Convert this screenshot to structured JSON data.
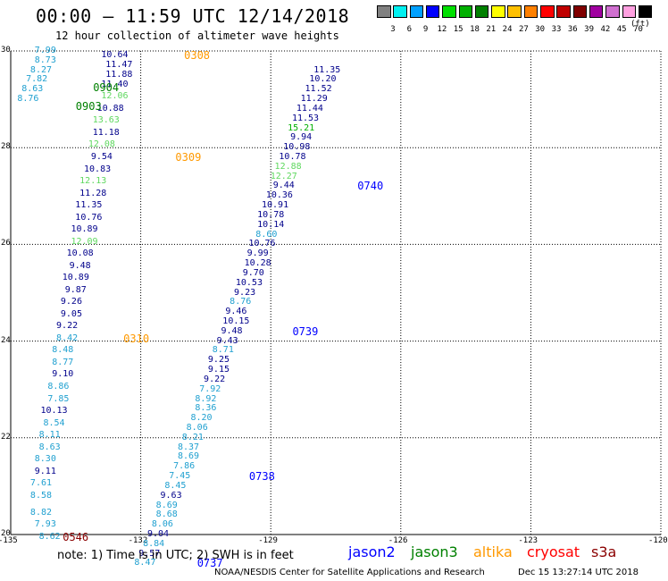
{
  "title": "00:00 – 11:59 UTC 12/14/2018",
  "subtitle": "12 hour collection of altimeter wave heights",
  "colorbar": {
    "colors": [
      "#808080",
      "#00f0f0",
      "#00a0ff",
      "#0000ff",
      "#00e000",
      "#00b000",
      "#008000",
      "#ffff00",
      "#ffc000",
      "#ff8000",
      "#ff0000",
      "#c00000",
      "#800000",
      "#a000a0",
      "#d070d0",
      "#ffa0e0",
      "#000000"
    ],
    "labels": [
      "3",
      "6",
      "9",
      "12",
      "15",
      "18",
      "21",
      "24",
      "27",
      "30",
      "33",
      "36",
      "39",
      "42",
      "45",
      "70"
    ],
    "unit": "(ft)"
  },
  "axes": {
    "x_ticks": [
      "-135",
      "-132",
      "-129",
      "-126",
      "-123",
      "-120"
    ],
    "y_ticks": [
      "30",
      "28",
      "26",
      "24",
      "22",
      "20"
    ],
    "xlim": [
      -135,
      -120
    ],
    "ylim": [
      20,
      30
    ]
  },
  "tracks": [
    {
      "lat": 29.9,
      "lon": -132.6,
      "value": "10.64",
      "color": "#00008b"
    },
    {
      "lat": 29.7,
      "lon": -132.5,
      "value": "11.47",
      "color": "#00008b"
    },
    {
      "lat": 29.5,
      "lon": -132.5,
      "value": "11.88",
      "color": "#00008b"
    },
    {
      "lat": 29.3,
      "lon": -132.6,
      "value": "11.40",
      "color": "#00008b"
    },
    {
      "lat": 29.05,
      "lon": -132.6,
      "value": "12.06",
      "color": "#5fd85f"
    },
    {
      "lat": 28.8,
      "lon": -132.7,
      "value": "10.88",
      "color": "#00008b"
    },
    {
      "lat": 28.55,
      "lon": -132.8,
      "value": "13.63",
      "color": "#5fd85f"
    },
    {
      "lat": 28.3,
      "lon": -132.8,
      "value": "11.18",
      "color": "#00008b"
    },
    {
      "lat": 28.05,
      "lon": -132.9,
      "value": "12.08",
      "color": "#5fd85f"
    },
    {
      "lat": 27.8,
      "lon": -132.9,
      "value": "9.54",
      "color": "#00008b"
    },
    {
      "lat": 27.55,
      "lon": -133.0,
      "value": "10.83",
      "color": "#00008b"
    },
    {
      "lat": 27.3,
      "lon": -133.1,
      "value": "12.13",
      "color": "#5fd85f"
    },
    {
      "lat": 27.05,
      "lon": -133.1,
      "value": "11.28",
      "color": "#00008b"
    },
    {
      "lat": 26.8,
      "lon": -133.2,
      "value": "11.35",
      "color": "#00008b"
    },
    {
      "lat": 26.55,
      "lon": -133.2,
      "value": "10.76",
      "color": "#00008b"
    },
    {
      "lat": 26.3,
      "lon": -133.3,
      "value": "10.89",
      "color": "#00008b"
    },
    {
      "lat": 26.05,
      "lon": -133.3,
      "value": "12.09",
      "color": "#5fd85f"
    },
    {
      "lat": 25.8,
      "lon": -133.4,
      "value": "10.08",
      "color": "#00008b"
    },
    {
      "lat": 25.55,
      "lon": -133.4,
      "value": "9.48",
      "color": "#00008b"
    },
    {
      "lat": 25.3,
      "lon": -133.5,
      "value": "10.89",
      "color": "#00008b"
    },
    {
      "lat": 25.05,
      "lon": -133.5,
      "value": "9.87",
      "color": "#00008b"
    },
    {
      "lat": 24.8,
      "lon": -133.6,
      "value": "9.26",
      "color": "#00008b"
    },
    {
      "lat": 24.55,
      "lon": -133.6,
      "value": "9.05",
      "color": "#00008b"
    },
    {
      "lat": 24.3,
      "lon": -133.7,
      "value": "9.22",
      "color": "#00008b"
    },
    {
      "lat": 24.05,
      "lon": -133.7,
      "value": "8.42",
      "color": "#20a0d0"
    },
    {
      "lat": 23.8,
      "lon": -133.8,
      "value": "8.48",
      "color": "#20a0d0"
    },
    {
      "lat": 23.55,
      "lon": -133.8,
      "value": "8.77",
      "color": "#20a0d0"
    },
    {
      "lat": 23.3,
      "lon": -133.8,
      "value": "9.10",
      "color": "#00008b"
    },
    {
      "lat": 23.05,
      "lon": -133.9,
      "value": "8.86",
      "color": "#20a0d0"
    },
    {
      "lat": 22.8,
      "lon": -133.9,
      "value": "7.85",
      "color": "#20a0d0"
    },
    {
      "lat": 22.55,
      "lon": -134.0,
      "value": "10.13",
      "color": "#00008b"
    },
    {
      "lat": 22.3,
      "lon": -134.0,
      "value": "8.54",
      "color": "#20a0d0"
    },
    {
      "lat": 22.05,
      "lon": -134.1,
      "value": "8.11",
      "color": "#20a0d0"
    },
    {
      "lat": 21.8,
      "lon": -134.1,
      "value": "8.63",
      "color": "#20a0d0"
    },
    {
      "lat": 21.55,
      "lon": -134.2,
      "value": "8.30",
      "color": "#20a0d0"
    },
    {
      "lat": 21.3,
      "lon": -134.2,
      "value": "9.11",
      "color": "#00008b"
    },
    {
      "lat": 21.05,
      "lon": -134.3,
      "value": "7.61",
      "color": "#20a0d0"
    },
    {
      "lat": 20.8,
      "lon": -134.3,
      "value": "8.58",
      "color": "#20a0d0"
    },
    {
      "lat": 20.45,
      "lon": -134.3,
      "value": "8.82",
      "color": "#20a0d0"
    },
    {
      "lat": 20.2,
      "lon": -134.2,
      "value": "7.93",
      "color": "#20a0d0"
    },
    {
      "lat": 19.95,
      "lon": -134.1,
      "value": "8.62",
      "color": "#20a0d0"
    },
    {
      "lat": 30.0,
      "lon": -134.2,
      "value": "7.99",
      "color": "#20a0d0"
    },
    {
      "lat": 29.8,
      "lon": -134.2,
      "value": "8.73",
      "color": "#20a0d0"
    },
    {
      "lat": 29.6,
      "lon": -134.3,
      "value": "8.27",
      "color": "#20a0d0"
    },
    {
      "lat": 29.4,
      "lon": -134.4,
      "value": "7.82",
      "color": "#20a0d0"
    },
    {
      "lat": 29.2,
      "lon": -134.5,
      "value": "8.63",
      "color": "#20a0d0"
    },
    {
      "lat": 29.0,
      "lon": -134.6,
      "value": "8.76",
      "color": "#20a0d0"
    },
    {
      "lat": 29.6,
      "lon": -127.7,
      "value": "11.35",
      "color": "#00008b"
    },
    {
      "lat": 29.4,
      "lon": -127.8,
      "value": "10.20",
      "color": "#00008b"
    },
    {
      "lat": 29.2,
      "lon": -127.9,
      "value": "11.52",
      "color": "#00008b"
    },
    {
      "lat": 29.0,
      "lon": -128.0,
      "value": "11.29",
      "color": "#00008b"
    },
    {
      "lat": 28.8,
      "lon": -128.1,
      "value": "11.44",
      "color": "#00008b"
    },
    {
      "lat": 28.6,
      "lon": -128.2,
      "value": "11.53",
      "color": "#00008b"
    },
    {
      "lat": 28.4,
      "lon": -128.3,
      "value": "15.21",
      "color": "#00b000"
    },
    {
      "lat": 28.2,
      "lon": -128.3,
      "value": "9.94",
      "color": "#00008b"
    },
    {
      "lat": 28.0,
      "lon": -128.4,
      "value": "10.98",
      "color": "#00008b"
    },
    {
      "lat": 27.8,
      "lon": -128.5,
      "value": "10.78",
      "color": "#00008b"
    },
    {
      "lat": 27.6,
      "lon": -128.6,
      "value": "12.88",
      "color": "#5fd85f"
    },
    {
      "lat": 27.4,
      "lon": -128.7,
      "value": "12.27",
      "color": "#5fd85f"
    },
    {
      "lat": 27.2,
      "lon": -128.7,
      "value": "9.44",
      "color": "#00008b"
    },
    {
      "lat": 27.0,
      "lon": -128.8,
      "value": "10.36",
      "color": "#00008b"
    },
    {
      "lat": 26.8,
      "lon": -128.9,
      "value": "10.91",
      "color": "#00008b"
    },
    {
      "lat": 26.6,
      "lon": -129.0,
      "value": "10.78",
      "color": "#00008b"
    },
    {
      "lat": 26.4,
      "lon": -129.0,
      "value": "10.14",
      "color": "#00008b"
    },
    {
      "lat": 26.2,
      "lon": -129.1,
      "value": "8.60",
      "color": "#20a0d0"
    },
    {
      "lat": 26.0,
      "lon": -129.2,
      "value": "10.76",
      "color": "#00008b"
    },
    {
      "lat": 25.8,
      "lon": -129.3,
      "value": "9.99",
      "color": "#00008b"
    },
    {
      "lat": 25.6,
      "lon": -129.3,
      "value": "10.28",
      "color": "#00008b"
    },
    {
      "lat": 25.4,
      "lon": -129.4,
      "value": "9.70",
      "color": "#00008b"
    },
    {
      "lat": 25.2,
      "lon": -129.5,
      "value": "10.53",
      "color": "#00008b"
    },
    {
      "lat": 25.0,
      "lon": -129.6,
      "value": "9.23",
      "color": "#00008b"
    },
    {
      "lat": 24.8,
      "lon": -129.7,
      "value": "8.76",
      "color": "#20a0d0"
    },
    {
      "lat": 24.6,
      "lon": -129.8,
      "value": "9.46",
      "color": "#00008b"
    },
    {
      "lat": 24.4,
      "lon": -129.8,
      "value": "10.15",
      "color": "#00008b"
    },
    {
      "lat": 24.2,
      "lon": -129.9,
      "value": "9.48",
      "color": "#00008b"
    },
    {
      "lat": 24.0,
      "lon": -130.0,
      "value": "9.43",
      "color": "#00008b"
    },
    {
      "lat": 23.8,
      "lon": -130.1,
      "value": "8.71",
      "color": "#20a0d0"
    },
    {
      "lat": 23.6,
      "lon": -130.2,
      "value": "9.25",
      "color": "#00008b"
    },
    {
      "lat": 23.4,
      "lon": -130.2,
      "value": "9.15",
      "color": "#00008b"
    },
    {
      "lat": 23.2,
      "lon": -130.3,
      "value": "9.22",
      "color": "#00008b"
    },
    {
      "lat": 23.0,
      "lon": -130.4,
      "value": "7.92",
      "color": "#20a0d0"
    },
    {
      "lat": 22.8,
      "lon": -130.5,
      "value": "8.92",
      "color": "#20a0d0"
    },
    {
      "lat": 22.6,
      "lon": -130.5,
      "value": "8.36",
      "color": "#20a0d0"
    },
    {
      "lat": 22.4,
      "lon": -130.6,
      "value": "8.20",
      "color": "#20a0d0"
    },
    {
      "lat": 22.2,
      "lon": -130.7,
      "value": "8.06",
      "color": "#20a0d0"
    },
    {
      "lat": 22.0,
      "lon": -130.8,
      "value": "8.21",
      "color": "#20a0d0"
    },
    {
      "lat": 21.8,
      "lon": -130.9,
      "value": "8.37",
      "color": "#20a0d0"
    },
    {
      "lat": 21.6,
      "lon": -130.9,
      "value": "8.69",
      "color": "#20a0d0"
    },
    {
      "lat": 21.4,
      "lon": -131.0,
      "value": "7.86",
      "color": "#20a0d0"
    },
    {
      "lat": 21.2,
      "lon": -131.1,
      "value": "7.45",
      "color": "#20a0d0"
    },
    {
      "lat": 21.0,
      "lon": -131.2,
      "value": "8.45",
      "color": "#20a0d0"
    },
    {
      "lat": 20.8,
      "lon": -131.3,
      "value": "9.63",
      "color": "#00008b"
    },
    {
      "lat": 20.6,
      "lon": -131.4,
      "value": "8.69",
      "color": "#20a0d0"
    },
    {
      "lat": 20.4,
      "lon": -131.4,
      "value": "8.68",
      "color": "#20a0d0"
    },
    {
      "lat": 20.2,
      "lon": -131.5,
      "value": "8.06",
      "color": "#20a0d0"
    },
    {
      "lat": 20.0,
      "lon": -131.6,
      "value": "9.04",
      "color": "#00008b"
    },
    {
      "lat": 19.8,
      "lon": -131.7,
      "value": "8.84",
      "color": "#20a0d0"
    },
    {
      "lat": 19.6,
      "lon": -131.8,
      "value": "9.57",
      "color": "#00008b"
    },
    {
      "lat": 19.4,
      "lon": -131.9,
      "value": "8.47",
      "color": "#20a0d0"
    }
  ],
  "pass_labels": [
    {
      "text": "0308",
      "lon": -131.0,
      "lat": 29.9,
      "color": "#ff9900"
    },
    {
      "text": "0904",
      "lon": -133.1,
      "lat": 29.25,
      "color": "#008000"
    },
    {
      "text": "0903",
      "lon": -133.5,
      "lat": 28.85,
      "color": "#008000"
    },
    {
      "text": "0309",
      "lon": -131.2,
      "lat": 27.8,
      "color": "#ff9900"
    },
    {
      "text": "0740",
      "lon": -127.0,
      "lat": 27.2,
      "color": "#0000ff"
    },
    {
      "text": "0739",
      "lon": -128.5,
      "lat": 24.2,
      "color": "#0000ff"
    },
    {
      "text": "0310",
      "lon": -132.4,
      "lat": 24.05,
      "color": "#ff9900"
    },
    {
      "text": "0738",
      "lon": -129.5,
      "lat": 21.2,
      "color": "#0000ff"
    },
    {
      "text": "0546",
      "lon": -133.8,
      "lat": 19.95,
      "color": "#8b0000"
    },
    {
      "text": "0737",
      "lon": -130.7,
      "lat": 19.4,
      "color": "#0000ff"
    }
  ],
  "note": "note:  1) Time is in UTC; 2) SWH is in feet",
  "legend": [
    {
      "text": "jason2",
      "color": "#0000ff"
    },
    {
      "text": "jason3",
      "color": "#008000"
    },
    {
      "text": "altika",
      "color": "#ff9900"
    },
    {
      "text": "cryosat",
      "color": "#ff0000"
    },
    {
      "text": "s3a",
      "color": "#8b0000"
    }
  ],
  "credit": "NOAA/NESDIS Center for Satellite Applications and Research",
  "stamp": "Dec 15 13:27:14 UTC 2018"
}
